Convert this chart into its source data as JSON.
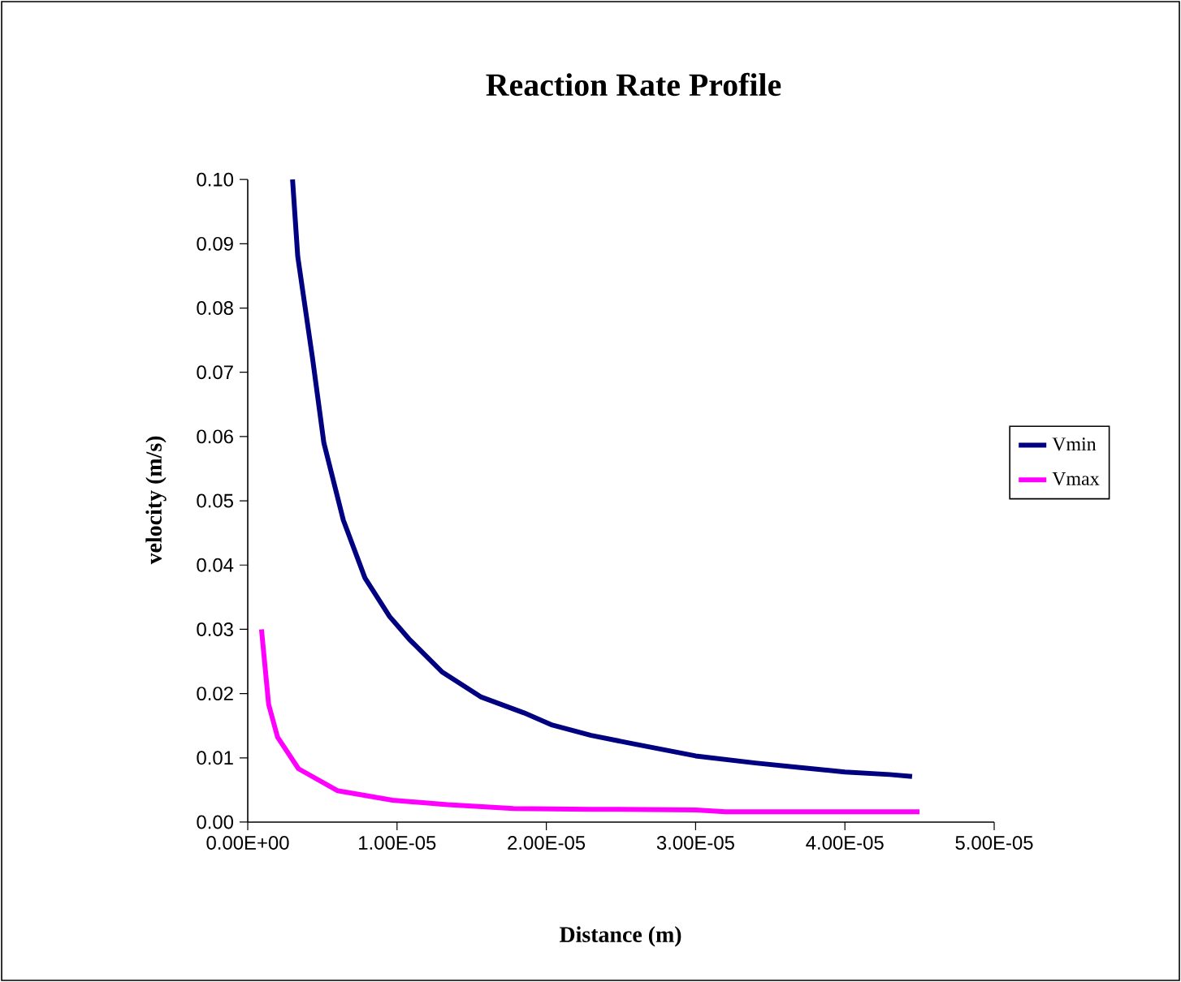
{
  "chart_data": {
    "type": "line",
    "title": "Reaction Rate Profile",
    "xlabel": "Distance (m)",
    "ylabel": "velocity (m/s)",
    "xlim": [
      0,
      5e-05
    ],
    "ylim": [
      0,
      0.1
    ],
    "xticks": [
      {
        "value": 0,
        "label": "0.00E+00"
      },
      {
        "value": 1e-05,
        "label": "1.00E-05"
      },
      {
        "value": 2e-05,
        "label": "2.00E-05"
      },
      {
        "value": 3e-05,
        "label": "3.00E-05"
      },
      {
        "value": 4e-05,
        "label": "4.00E-05"
      },
      {
        "value": 5e-05,
        "label": "5.00E-05"
      }
    ],
    "yticks": [
      {
        "value": 0,
        "label": "0.00"
      },
      {
        "value": 0.01,
        "label": "0.01"
      },
      {
        "value": 0.02,
        "label": "0.02"
      },
      {
        "value": 0.03,
        "label": "0.03"
      },
      {
        "value": 0.04,
        "label": "0.04"
      },
      {
        "value": 0.05,
        "label": "0.05"
      },
      {
        "value": 0.06,
        "label": "0.06"
      },
      {
        "value": 0.07,
        "label": "0.07"
      },
      {
        "value": 0.08,
        "label": "0.08"
      },
      {
        "value": 0.09,
        "label": "0.09"
      },
      {
        "value": 0.1,
        "label": "0.10"
      }
    ],
    "legend": "right",
    "series": [
      {
        "name": "Vmin",
        "color": "#000080",
        "x": [
          3e-06,
          3.35e-06,
          4.35e-06,
          5.1e-06,
          6.4e-06,
          7.85e-06,
          9.5e-06,
          1.08e-05,
          1.3e-05,
          1.56e-05,
          1.85e-05,
          2.04e-05,
          2.3e-05,
          2.6e-05,
          3e-05,
          3.4e-05,
          3.7e-05,
          4e-05,
          4.3e-05,
          4.45e-05
        ],
        "values": [
          0.1,
          0.088,
          0.072,
          0.059,
          0.047,
          0.038,
          0.032,
          0.0285,
          0.0234,
          0.0195,
          0.017,
          0.0151,
          0.0135,
          0.0121,
          0.0103,
          0.0092,
          0.0085,
          0.0078,
          0.0074,
          0.0071
        ]
      },
      {
        "name": "Vmax",
        "color": "#ff00ff",
        "x": [
          9.2e-07,
          1.4e-06,
          2e-06,
          3.4e-06,
          6e-06,
          9.7e-06,
          1.34e-05,
          1.78e-05,
          2.3e-05,
          3e-05,
          3.2e-05,
          4.5e-05
        ],
        "values": [
          0.03,
          0.0183,
          0.0132,
          0.0083,
          0.0049,
          0.0034,
          0.0027,
          0.0021,
          0.002,
          0.0019,
          0.0016,
          0.0016
        ]
      }
    ]
  }
}
